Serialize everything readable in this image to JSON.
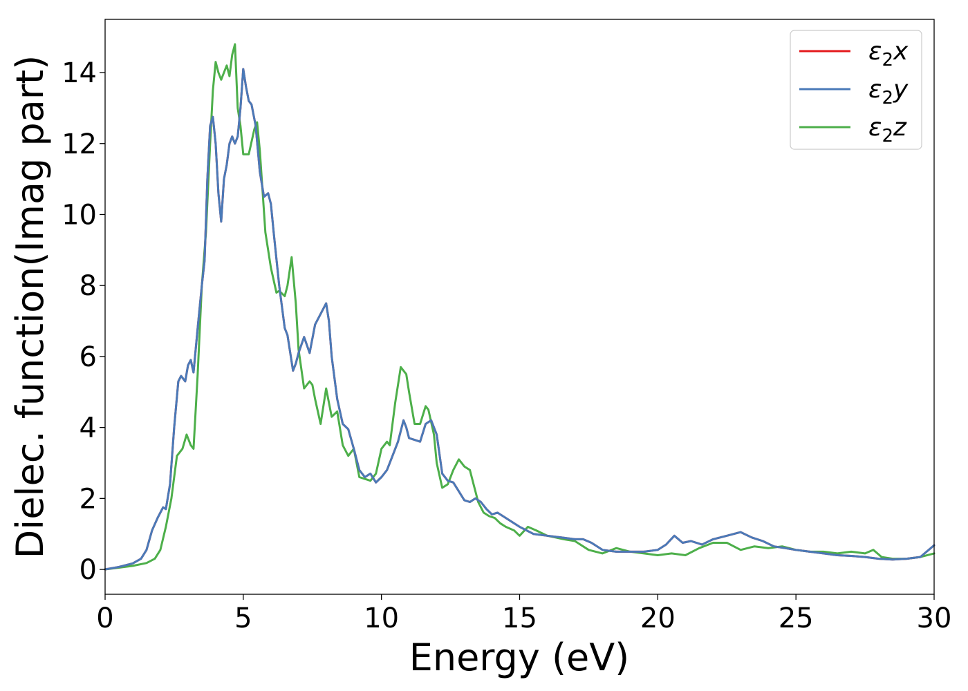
{
  "chart_data": {
    "type": "line",
    "title": "",
    "xlabel": "Energy (eV)",
    "ylabel": "Dielec. function(Imag part)",
    "xlim": [
      0,
      30
    ],
    "ylim": [
      -0.7,
      15.5
    ],
    "xticks": [
      0,
      5,
      10,
      15,
      20,
      25,
      30
    ],
    "yticks": [
      0,
      2,
      4,
      6,
      8,
      10,
      12,
      14
    ],
    "grid": false,
    "legend_position": "top-right",
    "series": [
      {
        "name_base": "ε",
        "name_sub": "2",
        "name_axis": "x",
        "color": "#e41a1c",
        "x": [
          0,
          0.5,
          1.0,
          1.3,
          1.5,
          1.7,
          1.9,
          2.1,
          2.2,
          2.35,
          2.5,
          2.65,
          2.75,
          2.9,
          3.0,
          3.1,
          3.2,
          3.35,
          3.5,
          3.6,
          3.7,
          3.8,
          3.9,
          4.0,
          4.1,
          4.2,
          4.3,
          4.4,
          4.5,
          4.6,
          4.7,
          4.8,
          4.9,
          5.0,
          5.1,
          5.2,
          5.3,
          5.45,
          5.6,
          5.75,
          5.9,
          6.0,
          6.1,
          6.3,
          6.5,
          6.6,
          6.8,
          6.9,
          7.0,
          7.2,
          7.4,
          7.6,
          7.8,
          8.0,
          8.1,
          8.2,
          8.4,
          8.6,
          8.8,
          9.0,
          9.2,
          9.4,
          9.6,
          9.8,
          10.0,
          10.2,
          10.4,
          10.6,
          10.8,
          10.9,
          11.0,
          11.2,
          11.4,
          11.6,
          11.8,
          12.0,
          12.2,
          12.4,
          12.6,
          12.8,
          13.0,
          13.2,
          13.4,
          13.6,
          13.8,
          14.0,
          14.2,
          14.4,
          14.6,
          14.8,
          15.0,
          15.5,
          16.0,
          16.5,
          17.0,
          17.3,
          17.6,
          18.0,
          18.5,
          19.0,
          19.5,
          20.0,
          20.3,
          20.6,
          20.9,
          21.2,
          21.6,
          22.0,
          22.5,
          23.0,
          23.4,
          23.8,
          24.2,
          24.6,
          25.0,
          25.5,
          26.0,
          26.5,
          27.0,
          27.5,
          28.0,
          28.5,
          29.0,
          29.5,
          30.0
        ],
        "y": [
          0.0,
          0.07,
          0.17,
          0.3,
          0.55,
          1.1,
          1.45,
          1.75,
          1.7,
          2.4,
          4.0,
          5.3,
          5.45,
          5.3,
          5.75,
          5.9,
          5.55,
          6.8,
          8.0,
          8.7,
          11.0,
          12.5,
          12.75,
          12.0,
          10.6,
          9.8,
          11.0,
          11.4,
          12.0,
          12.2,
          12.0,
          12.2,
          13.0,
          14.1,
          13.6,
          13.2,
          13.1,
          12.5,
          11.2,
          10.5,
          10.6,
          10.3,
          9.5,
          8.0,
          6.8,
          6.6,
          5.6,
          5.8,
          6.1,
          6.55,
          6.1,
          6.9,
          7.2,
          7.5,
          7.0,
          6.0,
          4.8,
          4.1,
          3.95,
          3.4,
          2.8,
          2.6,
          2.7,
          2.45,
          2.6,
          2.8,
          3.2,
          3.6,
          4.2,
          4.0,
          3.7,
          3.65,
          3.6,
          4.1,
          4.2,
          3.8,
          2.7,
          2.5,
          2.45,
          2.2,
          1.95,
          1.9,
          2.0,
          1.9,
          1.7,
          1.55,
          1.6,
          1.5,
          1.4,
          1.3,
          1.2,
          1.0,
          0.95,
          0.9,
          0.85,
          0.85,
          0.75,
          0.55,
          0.5,
          0.5,
          0.5,
          0.55,
          0.7,
          0.95,
          0.75,
          0.8,
          0.7,
          0.85,
          0.95,
          1.05,
          0.9,
          0.8,
          0.65,
          0.6,
          0.55,
          0.5,
          0.45,
          0.4,
          0.38,
          0.35,
          0.3,
          0.28,
          0.3,
          0.35,
          0.68
        ]
      },
      {
        "name_base": "ε",
        "name_sub": "2",
        "name_axis": "y",
        "color": "#4a7ab8",
        "x": [
          0,
          0.5,
          1.0,
          1.3,
          1.5,
          1.7,
          1.9,
          2.1,
          2.2,
          2.35,
          2.5,
          2.65,
          2.75,
          2.9,
          3.0,
          3.1,
          3.2,
          3.35,
          3.5,
          3.6,
          3.7,
          3.8,
          3.9,
          4.0,
          4.1,
          4.2,
          4.3,
          4.4,
          4.5,
          4.6,
          4.7,
          4.8,
          4.9,
          5.0,
          5.1,
          5.2,
          5.3,
          5.45,
          5.6,
          5.75,
          5.9,
          6.0,
          6.1,
          6.3,
          6.5,
          6.6,
          6.8,
          6.9,
          7.0,
          7.2,
          7.4,
          7.6,
          7.8,
          8.0,
          8.1,
          8.2,
          8.4,
          8.6,
          8.8,
          9.0,
          9.2,
          9.4,
          9.6,
          9.8,
          10.0,
          10.2,
          10.4,
          10.6,
          10.8,
          10.9,
          11.0,
          11.2,
          11.4,
          11.6,
          11.8,
          12.0,
          12.2,
          12.4,
          12.6,
          12.8,
          13.0,
          13.2,
          13.4,
          13.6,
          13.8,
          14.0,
          14.2,
          14.4,
          14.6,
          14.8,
          15.0,
          15.5,
          16.0,
          16.5,
          17.0,
          17.3,
          17.6,
          18.0,
          18.5,
          19.0,
          19.5,
          20.0,
          20.3,
          20.6,
          20.9,
          21.2,
          21.6,
          22.0,
          22.5,
          23.0,
          23.4,
          23.8,
          24.2,
          24.6,
          25.0,
          25.5,
          26.0,
          26.5,
          27.0,
          27.5,
          28.0,
          28.5,
          29.0,
          29.5,
          30.0
        ],
        "y": [
          0.0,
          0.07,
          0.17,
          0.3,
          0.55,
          1.1,
          1.45,
          1.75,
          1.7,
          2.4,
          4.0,
          5.3,
          5.45,
          5.3,
          5.75,
          5.9,
          5.55,
          6.8,
          8.0,
          8.7,
          11.0,
          12.5,
          12.75,
          12.0,
          10.6,
          9.8,
          11.0,
          11.4,
          12.0,
          12.2,
          12.0,
          12.2,
          13.0,
          14.1,
          13.6,
          13.2,
          13.1,
          12.5,
          11.2,
          10.5,
          10.6,
          10.3,
          9.5,
          8.0,
          6.8,
          6.6,
          5.6,
          5.8,
          6.1,
          6.55,
          6.1,
          6.9,
          7.2,
          7.5,
          7.0,
          6.0,
          4.8,
          4.1,
          3.95,
          3.4,
          2.8,
          2.6,
          2.7,
          2.45,
          2.6,
          2.8,
          3.2,
          3.6,
          4.2,
          4.0,
          3.7,
          3.65,
          3.6,
          4.1,
          4.2,
          3.8,
          2.7,
          2.5,
          2.45,
          2.2,
          1.95,
          1.9,
          2.0,
          1.9,
          1.7,
          1.55,
          1.6,
          1.5,
          1.4,
          1.3,
          1.2,
          1.0,
          0.95,
          0.9,
          0.85,
          0.85,
          0.75,
          0.55,
          0.5,
          0.5,
          0.5,
          0.55,
          0.7,
          0.95,
          0.75,
          0.8,
          0.7,
          0.85,
          0.95,
          1.05,
          0.9,
          0.8,
          0.65,
          0.6,
          0.55,
          0.5,
          0.45,
          0.4,
          0.38,
          0.35,
          0.3,
          0.28,
          0.3,
          0.35,
          0.68
        ]
      },
      {
        "name_base": "ε",
        "name_sub": "2",
        "name_axis": "z",
        "color": "#4daf4a",
        "x": [
          0,
          0.5,
          1.0,
          1.5,
          1.8,
          2.0,
          2.2,
          2.4,
          2.6,
          2.8,
          2.95,
          3.1,
          3.2,
          3.35,
          3.5,
          3.65,
          3.8,
          3.9,
          4.0,
          4.1,
          4.2,
          4.3,
          4.4,
          4.5,
          4.6,
          4.7,
          4.8,
          4.9,
          5.0,
          5.2,
          5.4,
          5.5,
          5.6,
          5.8,
          6.0,
          6.2,
          6.3,
          6.5,
          6.6,
          6.75,
          6.9,
          7.0,
          7.2,
          7.4,
          7.5,
          7.6,
          7.8,
          8.0,
          8.2,
          8.4,
          8.6,
          8.8,
          9.0,
          9.2,
          9.4,
          9.6,
          9.8,
          10.0,
          10.2,
          10.3,
          10.5,
          10.7,
          10.9,
          11.0,
          11.2,
          11.4,
          11.6,
          11.7,
          11.9,
          12.0,
          12.2,
          12.4,
          12.6,
          12.8,
          13.0,
          13.2,
          13.3,
          13.5,
          13.7,
          13.9,
          14.1,
          14.3,
          14.5,
          14.8,
          15.0,
          15.3,
          15.6,
          16.0,
          16.3,
          16.6,
          17.0,
          17.5,
          18.0,
          18.5,
          19.0,
          19.5,
          20.0,
          20.5,
          21.0,
          21.5,
          22.0,
          22.5,
          23.0,
          23.5,
          24.0,
          24.5,
          25.0,
          25.5,
          26.0,
          26.5,
          27.0,
          27.5,
          27.8,
          28.1,
          28.5,
          29.0,
          29.5,
          30.0
        ],
        "y": [
          0.0,
          0.05,
          0.1,
          0.18,
          0.3,
          0.55,
          1.2,
          2.0,
          3.2,
          3.4,
          3.8,
          3.5,
          3.4,
          5.5,
          8.0,
          9.5,
          12.0,
          13.5,
          14.3,
          14.0,
          13.8,
          14.0,
          14.2,
          13.9,
          14.5,
          14.8,
          13.0,
          12.5,
          11.7,
          11.7,
          12.4,
          12.6,
          11.8,
          9.5,
          8.5,
          7.8,
          7.85,
          7.7,
          8.0,
          8.8,
          7.5,
          6.2,
          5.1,
          5.3,
          5.2,
          4.8,
          4.1,
          5.1,
          4.3,
          4.45,
          3.5,
          3.2,
          3.4,
          2.6,
          2.55,
          2.5,
          2.7,
          3.4,
          3.6,
          3.5,
          4.7,
          5.7,
          5.5,
          5.0,
          4.1,
          4.1,
          4.6,
          4.5,
          3.8,
          3.0,
          2.3,
          2.4,
          2.8,
          3.1,
          2.9,
          2.8,
          2.5,
          1.9,
          1.6,
          1.5,
          1.45,
          1.3,
          1.2,
          1.1,
          0.95,
          1.2,
          1.1,
          0.95,
          0.9,
          0.85,
          0.8,
          0.55,
          0.45,
          0.6,
          0.5,
          0.45,
          0.4,
          0.45,
          0.4,
          0.6,
          0.75,
          0.75,
          0.55,
          0.65,
          0.6,
          0.65,
          0.55,
          0.5,
          0.5,
          0.45,
          0.5,
          0.45,
          0.55,
          0.35,
          0.3,
          0.3,
          0.35,
          0.45
        ]
      }
    ]
  }
}
